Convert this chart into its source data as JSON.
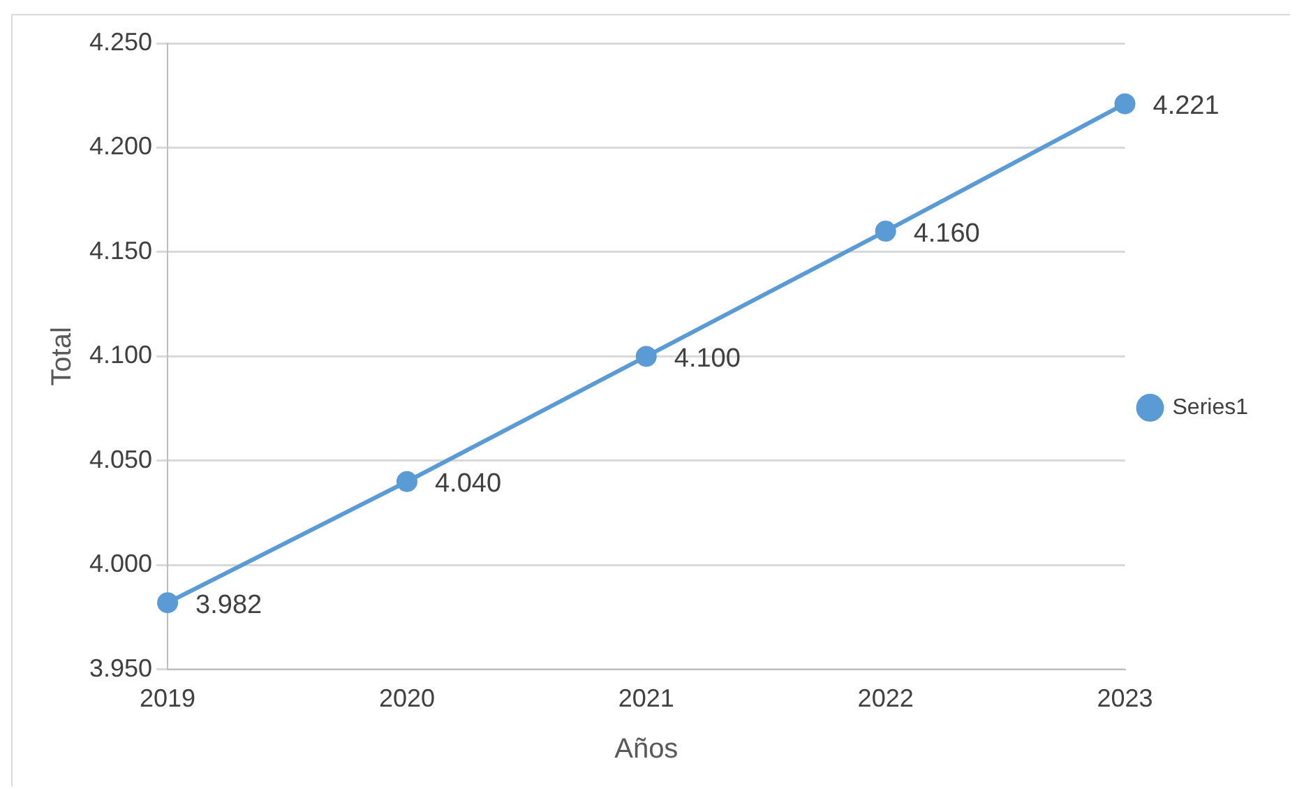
{
  "chart_data": {
    "type": "line",
    "xlabel": "Años",
    "ylabel": "Total",
    "categories": [
      "2019",
      "2020",
      "2021",
      "2022",
      "2023"
    ],
    "series": [
      {
        "name": "Series1",
        "color": "#5b9bd5",
        "values": [
          3982,
          4040,
          4100,
          4160,
          4221
        ],
        "value_labels": [
          "3.982",
          "4.040",
          "4.100",
          "4.160",
          "4.221"
        ]
      }
    ],
    "ylim": [
      3950,
      4250
    ],
    "yticks": [
      {
        "value": 3950,
        "label": "3.950"
      },
      {
        "value": 4000,
        "label": "4.000"
      },
      {
        "value": 4050,
        "label": "4.050"
      },
      {
        "value": 4100,
        "label": "4.100"
      },
      {
        "value": 4150,
        "label": "4.150"
      },
      {
        "value": 4200,
        "label": "4.200"
      },
      {
        "value": 4250,
        "label": "4.250"
      }
    ],
    "grid": "y",
    "legend": "right",
    "marker": "circle",
    "line_style": "solid"
  }
}
